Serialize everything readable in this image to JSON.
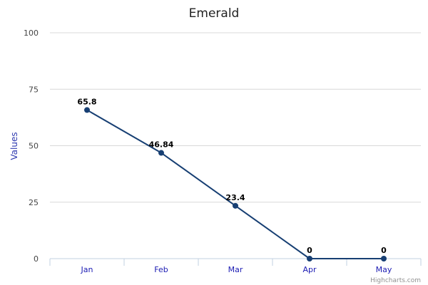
{
  "chart_data": {
    "type": "line",
    "title": "Emerald",
    "xlabel": "",
    "ylabel": "Values",
    "categories": [
      "Jan",
      "Feb",
      "Mar",
      "Apr",
      "May"
    ],
    "series": [
      {
        "values": [
          65.8,
          46.84,
          23.4,
          0,
          0
        ],
        "color": "#173f73"
      }
    ],
    "data_labels": [
      "65.8",
      "46.84",
      "23.4",
      "0",
      "0"
    ],
    "ylim": [
      0,
      100
    ],
    "yticks": [
      0,
      25,
      50,
      75,
      100
    ],
    "grid": true,
    "legend": "none"
  },
  "credit": "Highcharts.com",
  "colors": {
    "grid": "#d8d8d8",
    "axis": "#c0d0e0",
    "xtick_text": "#1b1bb3",
    "ylabel_text": "#2f3ab0"
  }
}
